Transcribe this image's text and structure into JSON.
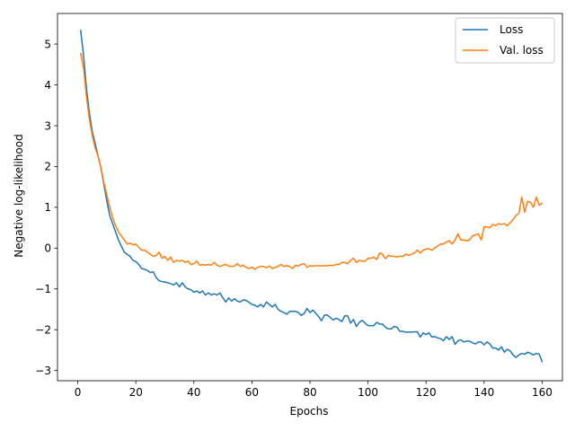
{
  "chart_data": {
    "type": "line",
    "title": "",
    "xlabel": "Epochs",
    "ylabel": "Negative log-likelihood",
    "xlim": [
      -7,
      167
    ],
    "ylim": [
      -3.25,
      5.75
    ],
    "xticks": [
      0,
      20,
      40,
      60,
      80,
      100,
      120,
      140,
      160
    ],
    "yticks": [
      -3,
      -2,
      -1,
      0,
      1,
      2,
      3,
      4,
      5
    ],
    "grid": false,
    "legend": "top-right",
    "series": [
      {
        "name": "Loss",
        "color": "#1f77b4",
        "points": [
          [
            1,
            5.33
          ],
          [
            2,
            4.7
          ],
          [
            3,
            3.9
          ],
          [
            4,
            3.3
          ],
          [
            5,
            2.85
          ],
          [
            6,
            2.55
          ],
          [
            7,
            2.25
          ],
          [
            8,
            1.95
          ],
          [
            9,
            1.55
          ],
          [
            10,
            1.15
          ],
          [
            11,
            0.8
          ],
          [
            12,
            0.6
          ],
          [
            13,
            0.4
          ],
          [
            14,
            0.2
          ],
          [
            15,
            0.05
          ],
          [
            16,
            -0.1
          ],
          [
            17,
            -0.15
          ],
          [
            18,
            -0.2
          ],
          [
            19,
            -0.3
          ],
          [
            20,
            -0.33
          ],
          [
            21,
            -0.4
          ],
          [
            22,
            -0.5
          ],
          [
            23,
            -0.52
          ],
          [
            24,
            -0.55
          ],
          [
            25,
            -0.6
          ],
          [
            26,
            -0.58
          ],
          [
            27,
            -0.72
          ],
          [
            28,
            -0.8
          ],
          [
            29,
            -0.82
          ],
          [
            30,
            -0.83
          ],
          [
            31,
            -0.85
          ],
          [
            32,
            -0.87
          ],
          [
            33,
            -0.9
          ],
          [
            34,
            -0.85
          ],
          [
            35,
            -0.95
          ],
          [
            36,
            -0.85
          ],
          [
            37,
            -0.95
          ],
          [
            38,
            -1.0
          ],
          [
            39,
            -1.02
          ],
          [
            40,
            -1.08
          ],
          [
            41,
            -1.05
          ],
          [
            42,
            -1.1
          ],
          [
            43,
            -1.05
          ],
          [
            44,
            -1.15
          ],
          [
            45,
            -1.1
          ],
          [
            46,
            -1.15
          ],
          [
            47,
            -1.12
          ],
          [
            48,
            -1.15
          ],
          [
            49,
            -1.1
          ],
          [
            50,
            -1.22
          ],
          [
            51,
            -1.32
          ],
          [
            52,
            -1.22
          ],
          [
            53,
            -1.3
          ],
          [
            54,
            -1.24
          ],
          [
            55,
            -1.3
          ],
          [
            56,
            -1.32
          ],
          [
            57,
            -1.27
          ],
          [
            58,
            -1.28
          ],
          [
            59,
            -1.33
          ],
          [
            60,
            -1.38
          ],
          [
            61,
            -1.4
          ],
          [
            62,
            -1.44
          ],
          [
            63,
            -1.38
          ],
          [
            64,
            -1.44
          ],
          [
            65,
            -1.32
          ],
          [
            66,
            -1.38
          ],
          [
            67,
            -1.44
          ],
          [
            68,
            -1.38
          ],
          [
            69,
            -1.5
          ],
          [
            70,
            -1.55
          ],
          [
            71,
            -1.58
          ],
          [
            72,
            -1.62
          ],
          [
            73,
            -1.55
          ],
          [
            74,
            -1.55
          ],
          [
            75,
            -1.55
          ],
          [
            76,
            -1.58
          ],
          [
            77,
            -1.65
          ],
          [
            78,
            -1.6
          ],
          [
            79,
            -1.48
          ],
          [
            80,
            -1.58
          ],
          [
            81,
            -1.52
          ],
          [
            82,
            -1.6
          ],
          [
            83,
            -1.68
          ],
          [
            84,
            -1.78
          ],
          [
            85,
            -1.64
          ],
          [
            86,
            -1.64
          ],
          [
            87,
            -1.7
          ],
          [
            88,
            -1.76
          ],
          [
            89,
            -1.72
          ],
          [
            90,
            -1.75
          ],
          [
            91,
            -1.8
          ],
          [
            92,
            -1.66
          ],
          [
            93,
            -1.66
          ],
          [
            94,
            -1.84
          ],
          [
            95,
            -1.75
          ],
          [
            96,
            -1.92
          ],
          [
            97,
            -1.82
          ],
          [
            98,
            -1.77
          ],
          [
            99,
            -1.84
          ],
          [
            100,
            -1.9
          ],
          [
            101,
            -1.9
          ],
          [
            102,
            -1.9
          ],
          [
            103,
            -1.82
          ],
          [
            104,
            -1.86
          ],
          [
            105,
            -1.86
          ],
          [
            106,
            -1.94
          ],
          [
            107,
            -1.98
          ],
          [
            108,
            -1.98
          ],
          [
            109,
            -1.92
          ],
          [
            110,
            -1.94
          ],
          [
            111,
            -2.04
          ],
          [
            112,
            -2.04
          ],
          [
            113,
            -2.06
          ],
          [
            114,
            -2.06
          ],
          [
            115,
            -2.06
          ],
          [
            116,
            -2.05
          ],
          [
            117,
            -2.05
          ],
          [
            118,
            -2.18
          ],
          [
            119,
            -2.08
          ],
          [
            120,
            -2.12
          ],
          [
            121,
            -2.08
          ],
          [
            122,
            -2.18
          ],
          [
            123,
            -2.17
          ],
          [
            124,
            -2.2
          ],
          [
            125,
            -2.22
          ],
          [
            126,
            -2.27
          ],
          [
            127,
            -2.17
          ],
          [
            128,
            -2.24
          ],
          [
            129,
            -2.17
          ],
          [
            130,
            -2.36
          ],
          [
            131,
            -2.27
          ],
          [
            132,
            -2.25
          ],
          [
            133,
            -2.3
          ],
          [
            134,
            -2.28
          ],
          [
            135,
            -2.28
          ],
          [
            136,
            -2.32
          ],
          [
            137,
            -2.35
          ],
          [
            138,
            -2.3
          ],
          [
            139,
            -2.3
          ],
          [
            140,
            -2.37
          ],
          [
            141,
            -2.3
          ],
          [
            142,
            -2.35
          ],
          [
            143,
            -2.45
          ],
          [
            144,
            -2.45
          ],
          [
            145,
            -2.5
          ],
          [
            146,
            -2.42
          ],
          [
            147,
            -2.55
          ],
          [
            148,
            -2.48
          ],
          [
            149,
            -2.52
          ],
          [
            150,
            -2.62
          ],
          [
            151,
            -2.68
          ],
          [
            152,
            -2.62
          ],
          [
            153,
            -2.58
          ],
          [
            154,
            -2.6
          ],
          [
            155,
            -2.55
          ],
          [
            156,
            -2.58
          ],
          [
            157,
            -2.62
          ],
          [
            158,
            -2.58
          ],
          [
            159,
            -2.6
          ],
          [
            160,
            -2.78
          ]
        ]
      },
      {
        "name": "Val. loss",
        "color": "#ff7f0e",
        "points": [
          [
            1,
            4.77
          ],
          [
            2,
            4.4
          ],
          [
            3,
            3.7
          ],
          [
            4,
            3.15
          ],
          [
            5,
            2.75
          ],
          [
            6,
            2.45
          ],
          [
            7,
            2.25
          ],
          [
            8,
            1.95
          ],
          [
            9,
            1.6
          ],
          [
            10,
            1.3
          ],
          [
            11,
            1.0
          ],
          [
            12,
            0.75
          ],
          [
            13,
            0.55
          ],
          [
            14,
            0.4
          ],
          [
            15,
            0.3
          ],
          [
            16,
            0.2
          ],
          [
            17,
            0.1
          ],
          [
            18,
            0.12
          ],
          [
            19,
            0.08
          ],
          [
            20,
            0.1
          ],
          [
            21,
            0.02
          ],
          [
            22,
            -0.05
          ],
          [
            23,
            -0.05
          ],
          [
            24,
            -0.1
          ],
          [
            25,
            -0.15
          ],
          [
            26,
            -0.2
          ],
          [
            27,
            -0.18
          ],
          [
            28,
            -0.1
          ],
          [
            29,
            -0.25
          ],
          [
            30,
            -0.2
          ],
          [
            31,
            -0.3
          ],
          [
            32,
            -0.22
          ],
          [
            33,
            -0.35
          ],
          [
            34,
            -0.3
          ],
          [
            35,
            -0.32
          ],
          [
            36,
            -0.3
          ],
          [
            37,
            -0.35
          ],
          [
            38,
            -0.32
          ],
          [
            39,
            -0.4
          ],
          [
            40,
            -0.38
          ],
          [
            41,
            -0.32
          ],
          [
            42,
            -0.42
          ],
          [
            43,
            -0.4
          ],
          [
            44,
            -0.42
          ],
          [
            45,
            -0.4
          ],
          [
            46,
            -0.42
          ],
          [
            47,
            -0.35
          ],
          [
            48,
            -0.42
          ],
          [
            49,
            -0.45
          ],
          [
            50,
            -0.42
          ],
          [
            51,
            -0.4
          ],
          [
            52,
            -0.44
          ],
          [
            53,
            -0.45
          ],
          [
            54,
            -0.44
          ],
          [
            55,
            -0.38
          ],
          [
            56,
            -0.45
          ],
          [
            57,
            -0.42
          ],
          [
            58,
            -0.47
          ],
          [
            59,
            -0.5
          ],
          [
            60,
            -0.47
          ],
          [
            61,
            -0.52
          ],
          [
            62,
            -0.47
          ],
          [
            63,
            -0.45
          ],
          [
            64,
            -0.45
          ],
          [
            65,
            -0.48
          ],
          [
            66,
            -0.44
          ],
          [
            67,
            -0.5
          ],
          [
            68,
            -0.47
          ],
          [
            69,
            -0.45
          ],
          [
            70,
            -0.4
          ],
          [
            71,
            -0.45
          ],
          [
            72,
            -0.43
          ],
          [
            73,
            -0.45
          ],
          [
            74,
            -0.5
          ],
          [
            75,
            -0.42
          ],
          [
            76,
            -0.44
          ],
          [
            77,
            -0.4
          ],
          [
            78,
            -0.38
          ],
          [
            79,
            -0.47
          ],
          [
            80,
            -0.43
          ],
          [
            81,
            -0.44
          ],
          [
            82,
            -0.43
          ],
          [
            83,
            -0.43
          ],
          [
            84,
            -0.44
          ],
          [
            85,
            -0.43
          ],
          [
            86,
            -0.43
          ],
          [
            87,
            -0.42
          ],
          [
            88,
            -0.43
          ],
          [
            89,
            -0.4
          ],
          [
            90,
            -0.4
          ],
          [
            91,
            -0.35
          ],
          [
            92,
            -0.35
          ],
          [
            93,
            -0.38
          ],
          [
            94,
            -0.3
          ],
          [
            95,
            -0.25
          ],
          [
            96,
            -0.35
          ],
          [
            97,
            -0.3
          ],
          [
            98,
            -0.32
          ],
          [
            99,
            -0.32
          ],
          [
            100,
            -0.25
          ],
          [
            101,
            -0.25
          ],
          [
            102,
            -0.22
          ],
          [
            103,
            -0.28
          ],
          [
            104,
            -0.12
          ],
          [
            105,
            -0.15
          ],
          [
            106,
            -0.26
          ],
          [
            107,
            -0.18
          ],
          [
            108,
            -0.2
          ],
          [
            109,
            -0.2
          ],
          [
            110,
            -0.22
          ],
          [
            111,
            -0.2
          ],
          [
            112,
            -0.2
          ],
          [
            113,
            -0.15
          ],
          [
            114,
            -0.18
          ],
          [
            115,
            -0.15
          ],
          [
            116,
            -0.12
          ],
          [
            117,
            -0.05
          ],
          [
            118,
            -0.12
          ],
          [
            119,
            -0.05
          ],
          [
            120,
            -0.02
          ],
          [
            121,
            -0.02
          ],
          [
            122,
            -0.05
          ],
          [
            123,
            0.0
          ],
          [
            124,
            0.05
          ],
          [
            125,
            0.1
          ],
          [
            126,
            0.1
          ],
          [
            127,
            0.15
          ],
          [
            128,
            0.18
          ],
          [
            129,
            0.1
          ],
          [
            130,
            0.2
          ],
          [
            131,
            0.35
          ],
          [
            132,
            0.2
          ],
          [
            133,
            0.2
          ],
          [
            134,
            0.18
          ],
          [
            135,
            0.2
          ],
          [
            136,
            0.3
          ],
          [
            137,
            0.32
          ],
          [
            138,
            0.35
          ],
          [
            139,
            0.2
          ],
          [
            140,
            0.52
          ],
          [
            141,
            0.52
          ],
          [
            142,
            0.5
          ],
          [
            143,
            0.58
          ],
          [
            144,
            0.55
          ],
          [
            145,
            0.6
          ],
          [
            146,
            0.58
          ],
          [
            147,
            0.6
          ],
          [
            148,
            0.55
          ],
          [
            149,
            0.62
          ],
          [
            150,
            0.7
          ],
          [
            151,
            0.8
          ],
          [
            152,
            0.85
          ],
          [
            153,
            1.25
          ],
          [
            154,
            0.88
          ],
          [
            155,
            1.15
          ],
          [
            156,
            1.12
          ],
          [
            157,
            1.0
          ],
          [
            158,
            1.25
          ],
          [
            159,
            1.05
          ],
          [
            160,
            1.1
          ]
        ]
      }
    ]
  }
}
